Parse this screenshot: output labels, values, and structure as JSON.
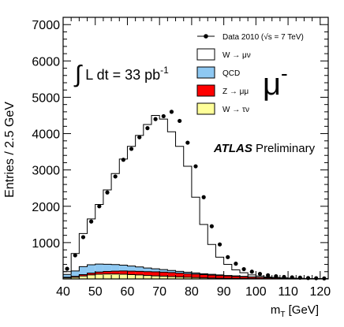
{
  "chart_data": {
    "type": "histogram",
    "xlabel_main": "m",
    "xlabel_sub": "T",
    "xlabel_unit": " [GeV]",
    "ylabel": "Entries / 2.5 GeV",
    "xlim": [
      40,
      122.5
    ],
    "ylim": [
      0,
      7200
    ],
    "x_ticks": [
      40,
      50,
      60,
      70,
      80,
      90,
      100,
      110,
      120
    ],
    "y_ticks": [
      1000,
      2000,
      3000,
      4000,
      5000,
      6000,
      7000
    ],
    "bin_width": 2.5,
    "bin_edges_start": 40,
    "annotations": {
      "lumi_prefix": "∫",
      "lumi_text": " L dt = 33 pb",
      "lumi_sup": "-1",
      "channel": "μ",
      "channel_sup": "-",
      "atlas": "ATLAS",
      "preliminary": " Preliminary"
    },
    "legend": {
      "data_label": "Data 2010 (√s = 7 TeV)",
      "entries": [
        {
          "key": "wmunu",
          "label": "W → μν",
          "color": "#ffffff"
        },
        {
          "key": "qcd",
          "label": "QCD",
          "color": "#8ec8f2"
        },
        {
          "key": "zmumu",
          "label": "Z → μμ",
          "color": "#ff0000"
        },
        {
          "key": "wtaunu",
          "label": "W → τν",
          "color": "#ffff99"
        }
      ]
    },
    "series": {
      "wtaunu": [
        30,
        45,
        80,
        110,
        130,
        135,
        135,
        130,
        120,
        110,
        95,
        85,
        75,
        65,
        55,
        45,
        38,
        30,
        25,
        20,
        16,
        13,
        10,
        8,
        6,
        5,
        4,
        3,
        2,
        2,
        1,
        1,
        1
      ],
      "zmumu": [
        15,
        25,
        40,
        50,
        60,
        70,
        80,
        90,
        95,
        100,
        105,
        110,
        112,
        110,
        105,
        100,
        95,
        88,
        80,
        72,
        65,
        58,
        50,
        42,
        35,
        28,
        22,
        18,
        14,
        10,
        8,
        6,
        5
      ],
      "qcd": [
        80,
        150,
        220,
        230,
        220,
        200,
        180,
        160,
        140,
        120,
        100,
        85,
        70,
        58,
        48,
        40,
        33,
        27,
        22,
        18,
        15,
        12,
        10,
        8,
        6,
        5,
        4,
        3,
        2,
        2,
        1,
        1,
        1
      ],
      "total": [
        200,
        700,
        1250,
        1650,
        2050,
        2450,
        2900,
        3300,
        3650,
        3950,
        4250,
        4500,
        4400,
        4050,
        3650,
        3100,
        2250,
        1500,
        950,
        600,
        400,
        250,
        170,
        110,
        80,
        55,
        40,
        30,
        22,
        16,
        12,
        9,
        7
      ]
    },
    "data_points": [
      {
        "x": 41.25,
        "y": 280
      },
      {
        "x": 43.75,
        "y": 650
      },
      {
        "x": 46.25,
        "y": 1150
      },
      {
        "x": 48.75,
        "y": 1580
      },
      {
        "x": 51.25,
        "y": 2000
      },
      {
        "x": 53.75,
        "y": 2380
      },
      {
        "x": 56.25,
        "y": 2820
      },
      {
        "x": 58.75,
        "y": 3280
      },
      {
        "x": 61.25,
        "y": 3580
      },
      {
        "x": 63.75,
        "y": 3900
      },
      {
        "x": 66.25,
        "y": 4150
      },
      {
        "x": 68.75,
        "y": 4400
      },
      {
        "x": 71.25,
        "y": 4480
      },
      {
        "x": 73.75,
        "y": 4600
      },
      {
        "x": 76.25,
        "y": 4350
      },
      {
        "x": 78.75,
        "y": 3750
      },
      {
        "x": 81.25,
        "y": 3100
      },
      {
        "x": 83.75,
        "y": 2250
      },
      {
        "x": 86.25,
        "y": 1450
      },
      {
        "x": 88.75,
        "y": 950
      },
      {
        "x": 91.25,
        "y": 600
      },
      {
        "x": 93.75,
        "y": 420
      },
      {
        "x": 96.25,
        "y": 270
      },
      {
        "x": 98.75,
        "y": 200
      },
      {
        "x": 101.25,
        "y": 140
      },
      {
        "x": 103.75,
        "y": 100
      },
      {
        "x": 106.25,
        "y": 75
      },
      {
        "x": 108.75,
        "y": 55
      },
      {
        "x": 111.25,
        "y": 45
      },
      {
        "x": 113.75,
        "y": 35
      },
      {
        "x": 116.25,
        "y": 25
      },
      {
        "x": 118.75,
        "y": 20
      },
      {
        "x": 121.25,
        "y": 15
      }
    ]
  }
}
